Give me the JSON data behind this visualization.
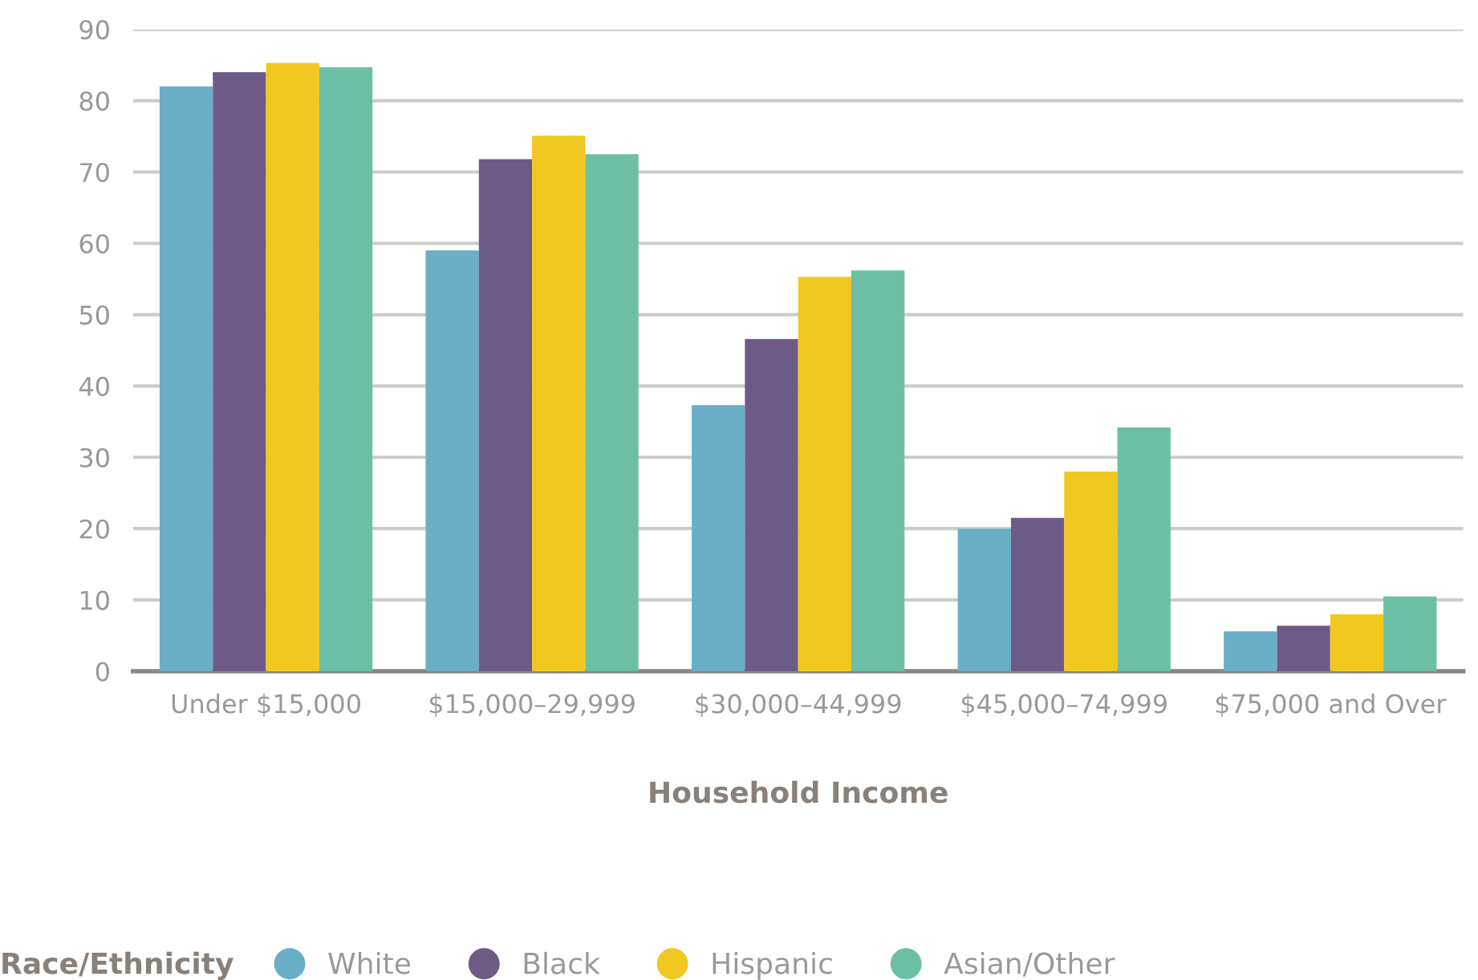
{
  "chart_data": {
    "type": "bar",
    "xlabel": "Household Income",
    "legend_title": "Race/Ethnicity",
    "categories": [
      "Under $15,000",
      "$15,000–29,999",
      "$30,000–44,999",
      "$45,000–74,999",
      "$75,000 and Over"
    ],
    "series": [
      {
        "name": "White",
        "color": "#6aaec7",
        "values": [
          82,
          59,
          37.3,
          20,
          5.6
        ]
      },
      {
        "name": "Black",
        "color": "#6e5a86",
        "values": [
          84,
          71.8,
          46.6,
          21.5,
          6.4
        ]
      },
      {
        "name": "Hispanic",
        "color": "#f0c820",
        "values": [
          85.3,
          75.1,
          55.3,
          28,
          8
        ]
      },
      {
        "name": "Asian/Other",
        "color": "#6cbfa5",
        "values": [
          84.7,
          72.5,
          56.2,
          34.2,
          10.5
        ]
      }
    ],
    "ylim": [
      0,
      90
    ],
    "yticks": [
      0,
      10,
      20,
      30,
      40,
      50,
      60,
      70,
      80,
      90
    ],
    "grid": "y",
    "legend": "bottom"
  }
}
